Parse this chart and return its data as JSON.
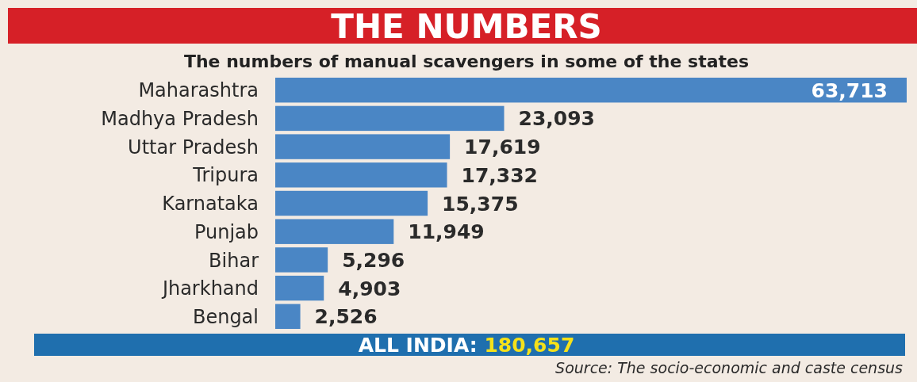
{
  "chart_data": {
    "type": "bar",
    "orientation": "horizontal",
    "title": "THE NUMBERS",
    "subtitle": "The numbers of manual scavengers in some of the states",
    "categories": [
      "Maharashtra",
      "Madhya Pradesh",
      "Uttar Pradesh",
      "Tripura",
      "Karnataka",
      "Punjab",
      "Bihar",
      "Jharkhand",
      "Bengal"
    ],
    "values": [
      63713,
      23093,
      17619,
      17332,
      15375,
      11949,
      5296,
      4903,
      2526
    ],
    "color": "#4a86c5",
    "value_labels": [
      "63,713",
      "23,093",
      "17,619",
      "17,332",
      "15,375",
      "11,949",
      "5,296",
      "4,903",
      "2,526"
    ],
    "annotations": [
      "ALL INDIA: 180,657",
      "Source: The socio-economic and caste census"
    ]
  }
}
